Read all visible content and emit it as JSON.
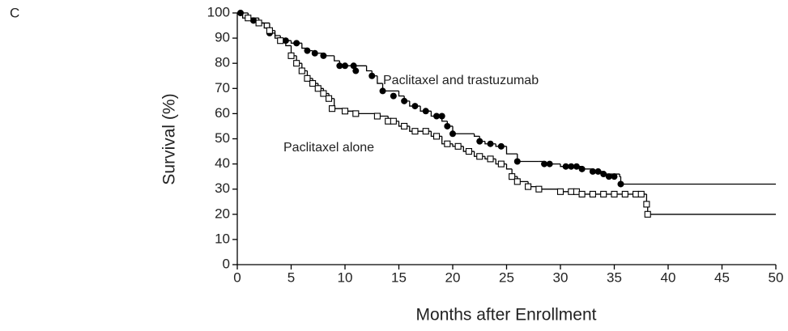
{
  "chart_data": {
    "type": "step",
    "panel_label": "C",
    "x_label": "Months after Enrollment",
    "y_label": "Survival (%)",
    "xlim": [
      0,
      50
    ],
    "ylim": [
      0,
      100
    ],
    "xticks": [
      0,
      5,
      10,
      15,
      20,
      25,
      30,
      35,
      40,
      45,
      50
    ],
    "yticks": [
      0,
      10,
      20,
      30,
      40,
      50,
      60,
      70,
      80,
      90,
      100
    ],
    "series": [
      {
        "name": "Paclitaxel and trastuzumab",
        "color": "#000000",
        "marker": "filled-circle",
        "x": [
          0,
          0.5,
          1,
          2,
          2.5,
          3,
          3.5,
          4,
          5,
          6,
          6.5,
          7,
          8,
          9,
          9.5,
          12,
          12.5,
          13,
          13.5,
          15,
          15.5,
          16,
          17,
          18,
          19,
          19.5,
          20,
          22,
          22.5,
          23,
          24,
          25,
          26,
          28,
          28.5,
          30,
          32,
          33,
          34,
          35.5,
          35.6,
          50
        ],
        "values": [
          100,
          98,
          97,
          96,
          94,
          92,
          90,
          89,
          88,
          86,
          85,
          84,
          83,
          81,
          79,
          77,
          75,
          72,
          69,
          67,
          65,
          63,
          61,
          59,
          57,
          55,
          52,
          51,
          49,
          48,
          47,
          44,
          41,
          41,
          40,
          39,
          38,
          37,
          36,
          35,
          32,
          32
        ],
        "censor_x": [
          0.3,
          1.5,
          3,
          4.5,
          5.5,
          6.5,
          7.2,
          8,
          9.5,
          10,
          10.8,
          11,
          12.5,
          13.5,
          14.5,
          15.5,
          16.5,
          17.5,
          18.5,
          19,
          19.5,
          20,
          22.5,
          23.5,
          24.5,
          26,
          28.5,
          29,
          30.5,
          31,
          31.5,
          32,
          33,
          33.5,
          34,
          34.5,
          35,
          35.6
        ],
        "censor_values": [
          100,
          97,
          92,
          89,
          88,
          85,
          84,
          83,
          79,
          79,
          79,
          77,
          75,
          69,
          67,
          65,
          63,
          61,
          59,
          59,
          55,
          52,
          49,
          48,
          47,
          41,
          40,
          40,
          39,
          39,
          39,
          38,
          37,
          37,
          36,
          35,
          35,
          32
        ]
      },
      {
        "name": "Paclitaxel alone",
        "color": "#000000",
        "marker": "open-square",
        "x": [
          0,
          1,
          2,
          3,
          3.5,
          4,
          4.5,
          5,
          5.5,
          6,
          6.5,
          7,
          7.5,
          8,
          8.5,
          9,
          10,
          11,
          13,
          14,
          15,
          16,
          18,
          19,
          20,
          21,
          22,
          23,
          24,
          25,
          25.5,
          26,
          27,
          28,
          30,
          32,
          38,
          38.1,
          50
        ],
        "values": [
          100,
          98,
          96,
          93,
          91,
          89,
          87,
          83,
          80,
          77,
          74,
          72,
          70,
          68,
          66,
          62,
          61,
          60,
          59,
          57,
          55,
          53,
          51,
          48,
          47,
          45,
          43,
          42,
          40,
          38,
          35,
          33,
          31,
          30,
          29,
          28,
          24,
          20,
          20
        ],
        "censor_x": [
          1,
          2,
          3,
          4,
          5,
          5.5,
          6,
          6.5,
          7,
          7.5,
          8,
          8.5,
          8.8,
          10,
          11,
          13,
          14,
          14.5,
          15.5,
          16.5,
          17.5,
          18.5,
          19.5,
          20.5,
          21.5,
          22.5,
          23.5,
          24.5,
          25.5,
          26,
          27,
          28,
          30,
          31,
          31.5,
          32,
          33,
          34,
          35,
          36,
          37,
          37.5,
          38,
          38.1
        ],
        "censor_values": [
          98,
          96,
          93,
          89,
          83,
          80,
          77,
          74,
          72,
          70,
          68,
          66,
          62,
          61,
          60,
          59,
          57,
          57,
          55,
          53,
          53,
          51,
          48,
          47,
          45,
          43,
          42,
          40,
          35,
          33,
          31,
          30,
          29,
          29,
          29,
          28,
          28,
          28,
          28,
          28,
          28,
          28,
          24,
          20
        ]
      }
    ]
  }
}
